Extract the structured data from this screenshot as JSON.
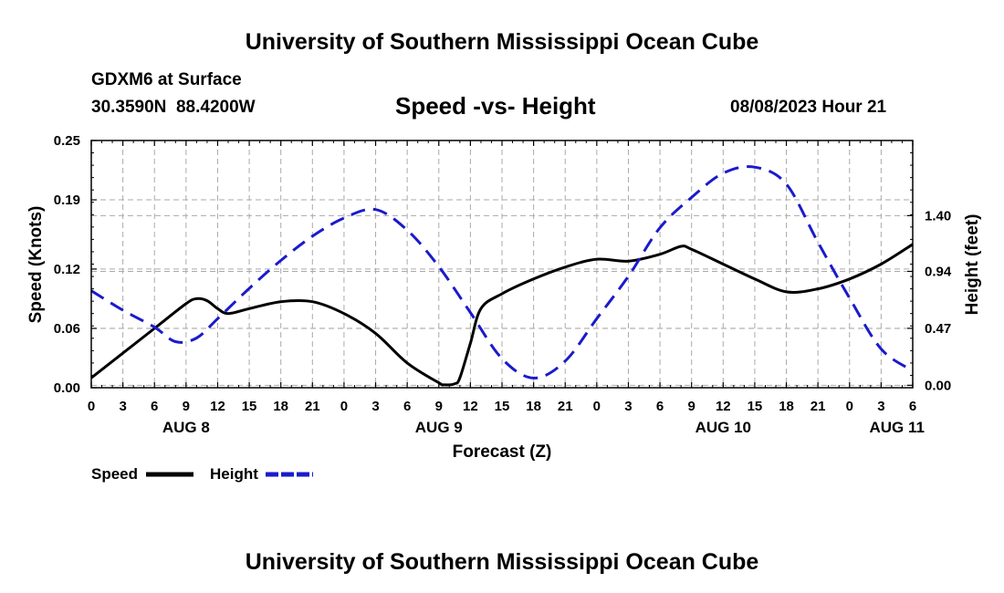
{
  "header": {
    "title": "University of Southern Mississippi Ocean Cube",
    "station": "GDXM6 at Surface",
    "coords": "30.3590N  88.4200W",
    "chart_title": "Speed -vs- Height",
    "datetime": "08/08/2023 Hour 21",
    "footer_title": "University of Southern Mississippi Ocean Cube"
  },
  "colors": {
    "speed": "#000000",
    "height": "#1a1acc",
    "grid": "#aaaaaa"
  },
  "chart_data": {
    "type": "line",
    "title": "Speed -vs- Height",
    "xlabel": "Forecast (Z)",
    "ylabel": "Speed (Knots)",
    "y2label": "Height (feet)",
    "xlim": [
      0,
      78
    ],
    "ylim": [
      0,
      0.25
    ],
    "y2lim": [
      -0.02,
      2.02
    ],
    "x_ticks": [
      0,
      3,
      6,
      9,
      12,
      15,
      18,
      21,
      24,
      27,
      30,
      33,
      36,
      39,
      42,
      45,
      48,
      51,
      54,
      57,
      60,
      63,
      66,
      69,
      72,
      75,
      78
    ],
    "x_tick_labels": [
      "0",
      "3",
      "6",
      "9",
      "12",
      "15",
      "18",
      "21",
      "0",
      "3",
      "6",
      "9",
      "12",
      "15",
      "18",
      "21",
      "0",
      "3",
      "6",
      "9",
      "12",
      "15",
      "18",
      "21",
      "0",
      "3",
      "6"
    ],
    "day_labels": [
      {
        "x": 9,
        "label": "AUG 8"
      },
      {
        "x": 33,
        "label": "AUG 9"
      },
      {
        "x": 60,
        "label": "AUG 10"
      },
      {
        "x": 76.5,
        "label": "AUG 11"
      }
    ],
    "y_ticks": [
      0.0,
      0.06,
      0.12,
      0.19,
      0.25
    ],
    "y_tick_labels": [
      "0.00",
      "0.06",
      "0.12",
      "0.19",
      "0.25"
    ],
    "y2_ticks": [
      0.0,
      0.47,
      0.94,
      1.4
    ],
    "y2_tick_labels": [
      "0.00",
      "0.47",
      "0.94",
      "1.40"
    ],
    "grid": true,
    "series": [
      {
        "name": "Speed",
        "axis": "left",
        "style": "solid",
        "x": [
          0,
          3,
          6,
          9,
          10,
          11,
          12,
          13,
          15,
          18,
          21,
          24,
          27,
          30,
          33,
          33.5,
          34.5,
          35,
          36,
          37,
          39,
          42,
          45,
          48,
          51,
          54,
          56,
          57,
          60,
          63,
          66,
          69,
          72,
          75,
          78
        ],
        "y": [
          0.01,
          0.035,
          0.06,
          0.085,
          0.09,
          0.088,
          0.08,
          0.075,
          0.08,
          0.087,
          0.087,
          0.075,
          0.055,
          0.025,
          0.005,
          0.003,
          0.004,
          0.01,
          0.045,
          0.08,
          0.095,
          0.11,
          0.122,
          0.13,
          0.128,
          0.135,
          0.143,
          0.14,
          0.125,
          0.11,
          0.097,
          0.1,
          0.11,
          0.125,
          0.145
        ]
      },
      {
        "name": "Height",
        "axis": "right",
        "style": "dashed",
        "x": [
          0,
          3,
          6,
          8,
          10,
          12,
          15,
          18,
          21,
          24,
          27,
          30,
          33,
          36,
          39,
          42,
          45,
          48,
          51,
          54,
          57,
          60,
          63,
          66,
          69,
          72,
          75,
          78
        ],
        "y": [
          0.78,
          0.62,
          0.48,
          0.36,
          0.39,
          0.55,
          0.8,
          1.03,
          1.23,
          1.38,
          1.45,
          1.28,
          0.98,
          0.6,
          0.22,
          0.06,
          0.2,
          0.55,
          0.9,
          1.3,
          1.55,
          1.75,
          1.8,
          1.66,
          1.18,
          0.72,
          0.3,
          0.12
        ]
      }
    ],
    "legend": [
      {
        "label": "Speed",
        "style": "solid"
      },
      {
        "label": "Height",
        "style": "dashed"
      }
    ]
  }
}
